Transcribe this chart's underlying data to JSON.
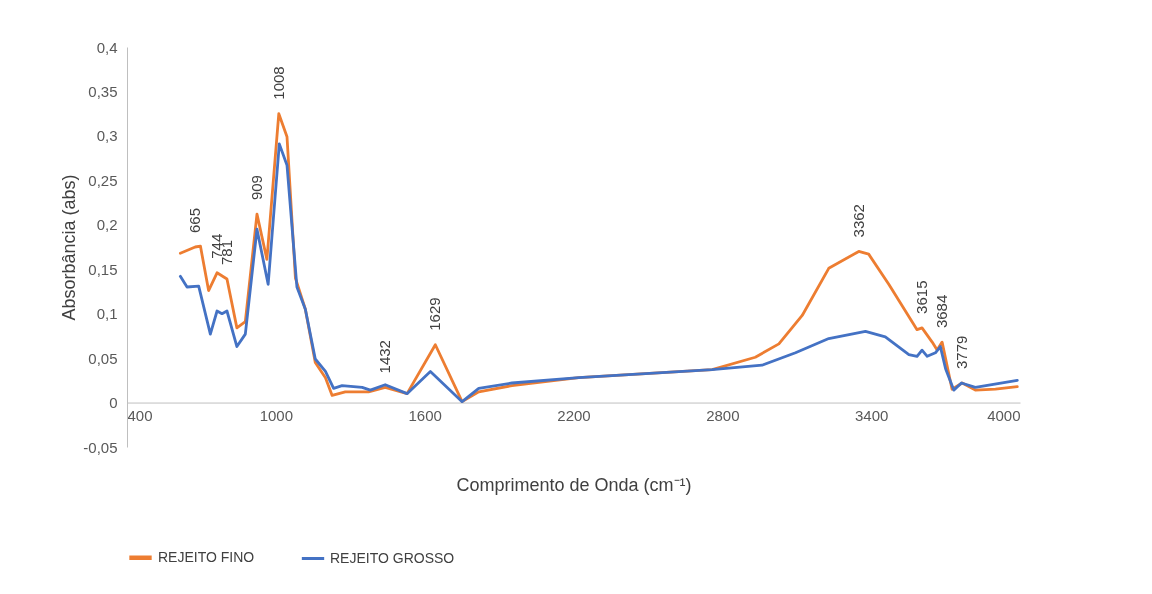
{
  "chart_data": {
    "type": "line",
    "xlabel": "Comprimento de Onda (cm⁻¹)",
    "ylabel": "Absorbância (abs)",
    "xlim": [
      400,
      4000
    ],
    "xticks": [
      400,
      1000,
      1600,
      2200,
      2800,
      3400,
      4000
    ],
    "ylim": [
      -0.05,
      0.4
    ],
    "yticks": [
      {
        "value": -0.05,
        "label": "-0,05"
      },
      {
        "value": 0,
        "label": "0"
      },
      {
        "value": 0.05,
        "label": "0,05"
      },
      {
        "value": 0.1,
        "label": "0,1"
      },
      {
        "value": 0.15,
        "label": "0,15"
      },
      {
        "value": 0.2,
        "label": "0,2"
      },
      {
        "value": 0.25,
        "label": "0,25"
      },
      {
        "value": 0.3,
        "label": "0,3"
      },
      {
        "value": 0.35,
        "label": "0,35"
      },
      {
        "value": 0.4,
        "label": "0,4"
      }
    ],
    "grid": false,
    "legend": "bottom",
    "marker": "none",
    "line_style": "solid",
    "series": [
      {
        "name": "REJEITO FINO",
        "color": "#ed7d31",
        "x": [
          615,
          675,
          696,
          729,
          763,
          803,
          843,
          877,
          924,
          964,
          1012,
          1045,
          1079,
          1119,
          1159,
          1200,
          1227,
          1280,
          1374,
          1441,
          1529,
          1643,
          1751,
          1818,
          1952,
          2221,
          2759,
          2933,
          3028,
          3122,
          3229,
          3350,
          3390,
          3471,
          3585,
          3605,
          3646,
          3666,
          3686,
          3726,
          3767,
          3820,
          3901,
          3989
        ],
        "values": [
          0.168,
          0.175,
          0.176,
          0.126,
          0.146,
          0.139,
          0.084,
          0.091,
          0.212,
          0.161,
          0.325,
          0.299,
          0.14,
          0.105,
          0.045,
          0.028,
          0.008,
          0.012,
          0.012,
          0.017,
          0.01,
          0.065,
          0.001,
          0.012,
          0.019,
          0.028,
          0.037,
          0.051,
          0.066,
          0.098,
          0.151,
          0.17,
          0.167,
          0.133,
          0.082,
          0.084,
          0.068,
          0.059,
          0.068,
          0.015,
          0.022,
          0.014,
          0.015,
          0.018
        ]
      },
      {
        "name": "REJEITO GROSSO",
        "color": "#4472c4",
        "x": [
          615,
          642,
          689,
          736,
          763,
          783,
          803,
          843,
          877,
          924,
          969,
          1014,
          1045,
          1085,
          1119,
          1159,
          1200,
          1233,
          1267,
          1348,
          1381,
          1441,
          1529,
          1623,
          1751,
          1818,
          1952,
          2221,
          2759,
          2960,
          3095,
          3229,
          3377,
          3457,
          3552,
          3585,
          3605,
          3626,
          3659,
          3679,
          3700,
          3733,
          3764,
          3820,
          3989
        ],
        "values": [
          0.142,
          0.13,
          0.131,
          0.077,
          0.103,
          0.1,
          0.103,
          0.063,
          0.077,
          0.195,
          0.133,
          0.291,
          0.267,
          0.13,
          0.105,
          0.049,
          0.035,
          0.016,
          0.019,
          0.017,
          0.014,
          0.02,
          0.01,
          0.035,
          0.001,
          0.016,
          0.022,
          0.028,
          0.037,
          0.042,
          0.056,
          0.072,
          0.08,
          0.074,
          0.054,
          0.052,
          0.059,
          0.052,
          0.056,
          0.063,
          0.038,
          0.014,
          0.022,
          0.017,
          0.025
        ]
      }
    ],
    "annotations": [
      {
        "text": "665",
        "x": 675,
        "y": 0.175
      },
      {
        "text": "744",
        "x": 763,
        "y": 0.146
      },
      {
        "text": "781",
        "x": 803,
        "y": 0.139
      },
      {
        "text": "909",
        "x": 924,
        "y": 0.212
      },
      {
        "text": "1008",
        "x": 1012,
        "y": 0.325
      },
      {
        "text": "1432",
        "x": 1441,
        "y": 0.017
      },
      {
        "text": "1629",
        "x": 1643,
        "y": 0.065
      },
      {
        "text": "3362",
        "x": 3350,
        "y": 0.17
      },
      {
        "text": "3615",
        "x": 3605,
        "y": 0.084
      },
      {
        "text": "3684",
        "x": 3686,
        "y": 0.068
      },
      {
        "text": "3779",
        "x": 3767,
        "y": 0.022
      }
    ]
  }
}
